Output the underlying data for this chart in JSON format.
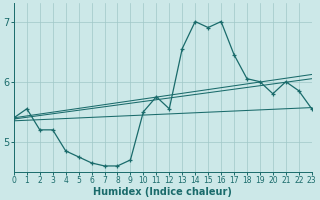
{
  "xlabel": "Humidex (Indice chaleur)",
  "x_values": [
    0,
    1,
    2,
    3,
    4,
    5,
    6,
    7,
    8,
    9,
    10,
    11,
    12,
    13,
    14,
    15,
    16,
    17,
    18,
    19,
    20,
    21,
    22,
    23
  ],
  "line1": [
    5.4,
    5.55,
    5.2,
    5.2,
    4.85,
    4.75,
    4.65,
    4.6,
    4.6,
    4.7,
    5.5,
    5.75,
    5.55,
    6.55,
    7.0,
    6.9,
    7.0,
    6.45,
    6.05,
    6.0,
    5.8,
    6.0,
    5.85,
    5.55
  ],
  "trend1_x": [
    0,
    23
  ],
  "trend1_y": [
    5.35,
    5.57
  ],
  "trend2_x": [
    0,
    23
  ],
  "trend2_y": [
    5.38,
    6.05
  ],
  "trend3_x": [
    0,
    23
  ],
  "trend3_y": [
    5.4,
    6.12
  ],
  "bg_color": "#cce8e8",
  "line_color": "#1a6b6b",
  "grid_color": "#a0c8c8",
  "ylim": [
    4.5,
    7.3
  ],
  "xlim": [
    0,
    23
  ],
  "yticks": [
    5,
    6,
    7
  ],
  "xticks": [
    0,
    1,
    2,
    3,
    4,
    5,
    6,
    7,
    8,
    9,
    10,
    11,
    12,
    13,
    14,
    15,
    16,
    17,
    18,
    19,
    20,
    21,
    22,
    23
  ],
  "xlabel_fontsize": 7,
  "ytick_fontsize": 7,
  "xtick_fontsize": 5.5
}
